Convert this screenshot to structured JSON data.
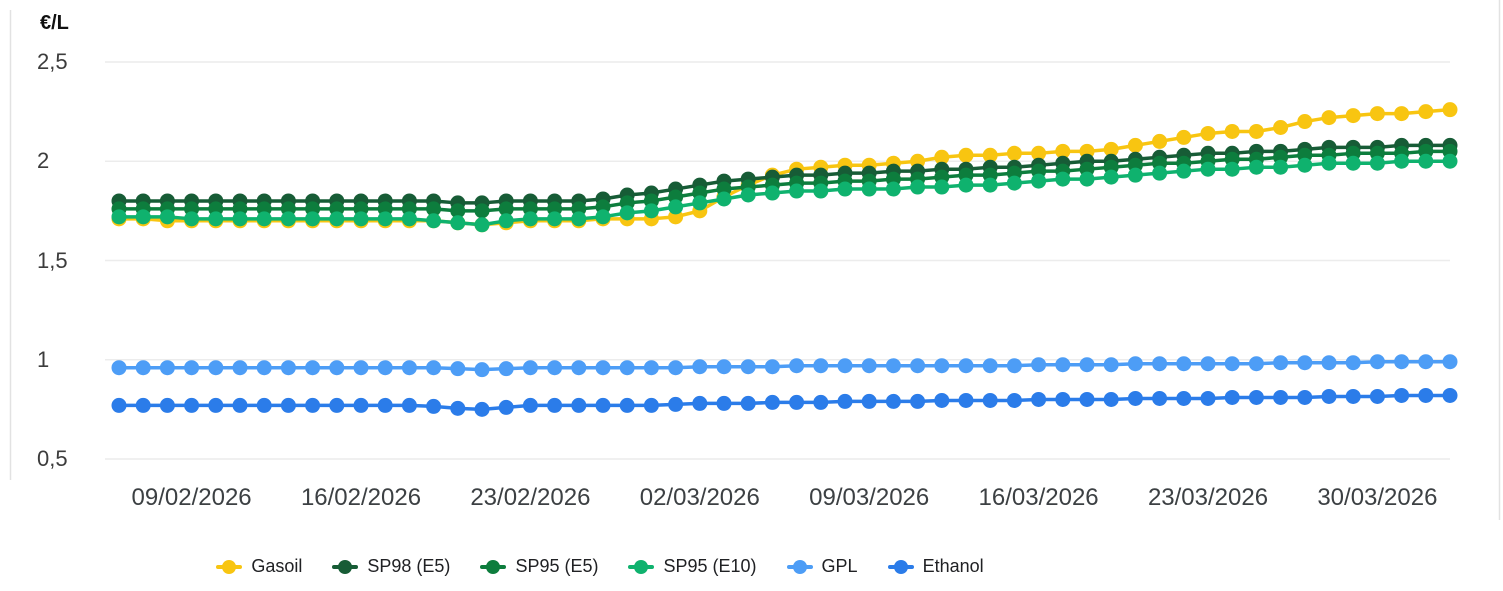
{
  "chart_data": {
    "type": "line",
    "y_axis_title": "€/L",
    "n_points": 56,
    "start_date": "06/02/2026",
    "x_tick_labels": [
      "09/02/2026",
      "16/02/2026",
      "23/02/2026",
      "02/03/2026",
      "09/03/2026",
      "16/03/2026",
      "23/03/2026",
      "30/03/2026"
    ],
    "tick_indices": [
      3,
      10,
      17,
      24,
      31,
      38,
      45,
      52
    ],
    "y_ticks": [
      {
        "value": 2.5,
        "label": "2,5"
      },
      {
        "value": 2.0,
        "label": "2"
      },
      {
        "value": 1.5,
        "label": "1,5"
      },
      {
        "value": 1.0,
        "label": "1"
      },
      {
        "value": 0.5,
        "label": "0,5"
      }
    ],
    "ylim": [
      0.5,
      2.5
    ],
    "grid": true,
    "legend_position": "bottom",
    "colors": {
      "grid": "#ececec",
      "border": "#e2e2e2",
      "axis_text": "#3c4043",
      "legend_text": "#202124"
    },
    "series": [
      {
        "name": "Gasoil",
        "color": "#F8C511",
        "values": [
          1.71,
          1.71,
          1.7,
          1.7,
          1.7,
          1.7,
          1.7,
          1.7,
          1.7,
          1.7,
          1.7,
          1.7,
          1.7,
          1.7,
          1.69,
          1.68,
          1.69,
          1.7,
          1.7,
          1.7,
          1.71,
          1.71,
          1.71,
          1.72,
          1.75,
          1.82,
          1.88,
          1.93,
          1.96,
          1.97,
          1.98,
          1.98,
          1.99,
          2.0,
          2.02,
          2.03,
          2.03,
          2.04,
          2.04,
          2.05,
          2.05,
          2.06,
          2.08,
          2.1,
          2.12,
          2.14,
          2.15,
          2.15,
          2.17,
          2.2,
          2.22,
          2.23,
          2.24,
          2.24,
          2.25,
          2.26
        ]
      },
      {
        "name": "SP98 (E5)",
        "color": "#175C36",
        "values": [
          1.8,
          1.8,
          1.8,
          1.8,
          1.8,
          1.8,
          1.8,
          1.8,
          1.8,
          1.8,
          1.8,
          1.8,
          1.8,
          1.8,
          1.79,
          1.79,
          1.8,
          1.8,
          1.8,
          1.8,
          1.81,
          1.83,
          1.84,
          1.86,
          1.88,
          1.9,
          1.91,
          1.92,
          1.93,
          1.93,
          1.94,
          1.94,
          1.95,
          1.95,
          1.96,
          1.96,
          1.97,
          1.97,
          1.98,
          1.99,
          2.0,
          2.0,
          2.01,
          2.02,
          2.03,
          2.04,
          2.04,
          2.05,
          2.05,
          2.06,
          2.07,
          2.07,
          2.07,
          2.08,
          2.08,
          2.08
        ]
      },
      {
        "name": "SP95 (E5)",
        "color": "#0D7D3D",
        "values": [
          1.76,
          1.76,
          1.76,
          1.76,
          1.76,
          1.76,
          1.76,
          1.76,
          1.76,
          1.76,
          1.76,
          1.76,
          1.76,
          1.76,
          1.75,
          1.75,
          1.76,
          1.76,
          1.76,
          1.76,
          1.77,
          1.79,
          1.8,
          1.82,
          1.84,
          1.86,
          1.87,
          1.88,
          1.89,
          1.89,
          1.9,
          1.9,
          1.91,
          1.91,
          1.92,
          1.93,
          1.93,
          1.94,
          1.95,
          1.95,
          1.96,
          1.97,
          1.98,
          1.99,
          1.99,
          2.0,
          2.01,
          2.01,
          2.02,
          2.03,
          2.03,
          2.04,
          2.04,
          2.04,
          2.05,
          2.05
        ]
      },
      {
        "name": "SP95 (E10)",
        "color": "#0FB26E",
        "values": [
          1.72,
          1.72,
          1.72,
          1.71,
          1.71,
          1.71,
          1.71,
          1.71,
          1.71,
          1.71,
          1.71,
          1.71,
          1.71,
          1.7,
          1.69,
          1.68,
          1.7,
          1.71,
          1.71,
          1.71,
          1.72,
          1.74,
          1.75,
          1.77,
          1.79,
          1.81,
          1.83,
          1.84,
          1.85,
          1.85,
          1.86,
          1.86,
          1.86,
          1.87,
          1.87,
          1.88,
          1.88,
          1.89,
          1.9,
          1.91,
          1.91,
          1.92,
          1.93,
          1.94,
          1.95,
          1.96,
          1.96,
          1.97,
          1.97,
          1.98,
          1.99,
          1.99,
          1.99,
          2.0,
          2.0,
          2.0
        ]
      },
      {
        "name": "GPL",
        "color": "#4D9DF6",
        "values": [
          0.96,
          0.96,
          0.96,
          0.96,
          0.96,
          0.96,
          0.96,
          0.96,
          0.96,
          0.96,
          0.96,
          0.96,
          0.96,
          0.96,
          0.955,
          0.95,
          0.955,
          0.96,
          0.96,
          0.96,
          0.96,
          0.96,
          0.96,
          0.96,
          0.965,
          0.965,
          0.965,
          0.965,
          0.97,
          0.97,
          0.97,
          0.97,
          0.97,
          0.97,
          0.97,
          0.97,
          0.97,
          0.97,
          0.975,
          0.975,
          0.975,
          0.975,
          0.98,
          0.98,
          0.98,
          0.98,
          0.98,
          0.98,
          0.985,
          0.985,
          0.985,
          0.985,
          0.99,
          0.99,
          0.99,
          0.99
        ]
      },
      {
        "name": "Ethanol",
        "color": "#2B7CE9",
        "values": [
          0.77,
          0.77,
          0.77,
          0.77,
          0.77,
          0.77,
          0.77,
          0.77,
          0.77,
          0.77,
          0.77,
          0.77,
          0.77,
          0.765,
          0.755,
          0.75,
          0.76,
          0.77,
          0.77,
          0.77,
          0.77,
          0.77,
          0.77,
          0.775,
          0.78,
          0.78,
          0.78,
          0.785,
          0.785,
          0.785,
          0.79,
          0.79,
          0.79,
          0.79,
          0.795,
          0.795,
          0.795,
          0.795,
          0.8,
          0.8,
          0.8,
          0.8,
          0.805,
          0.805,
          0.805,
          0.805,
          0.81,
          0.81,
          0.81,
          0.81,
          0.815,
          0.815,
          0.815,
          0.82,
          0.82,
          0.82
        ]
      }
    ]
  }
}
